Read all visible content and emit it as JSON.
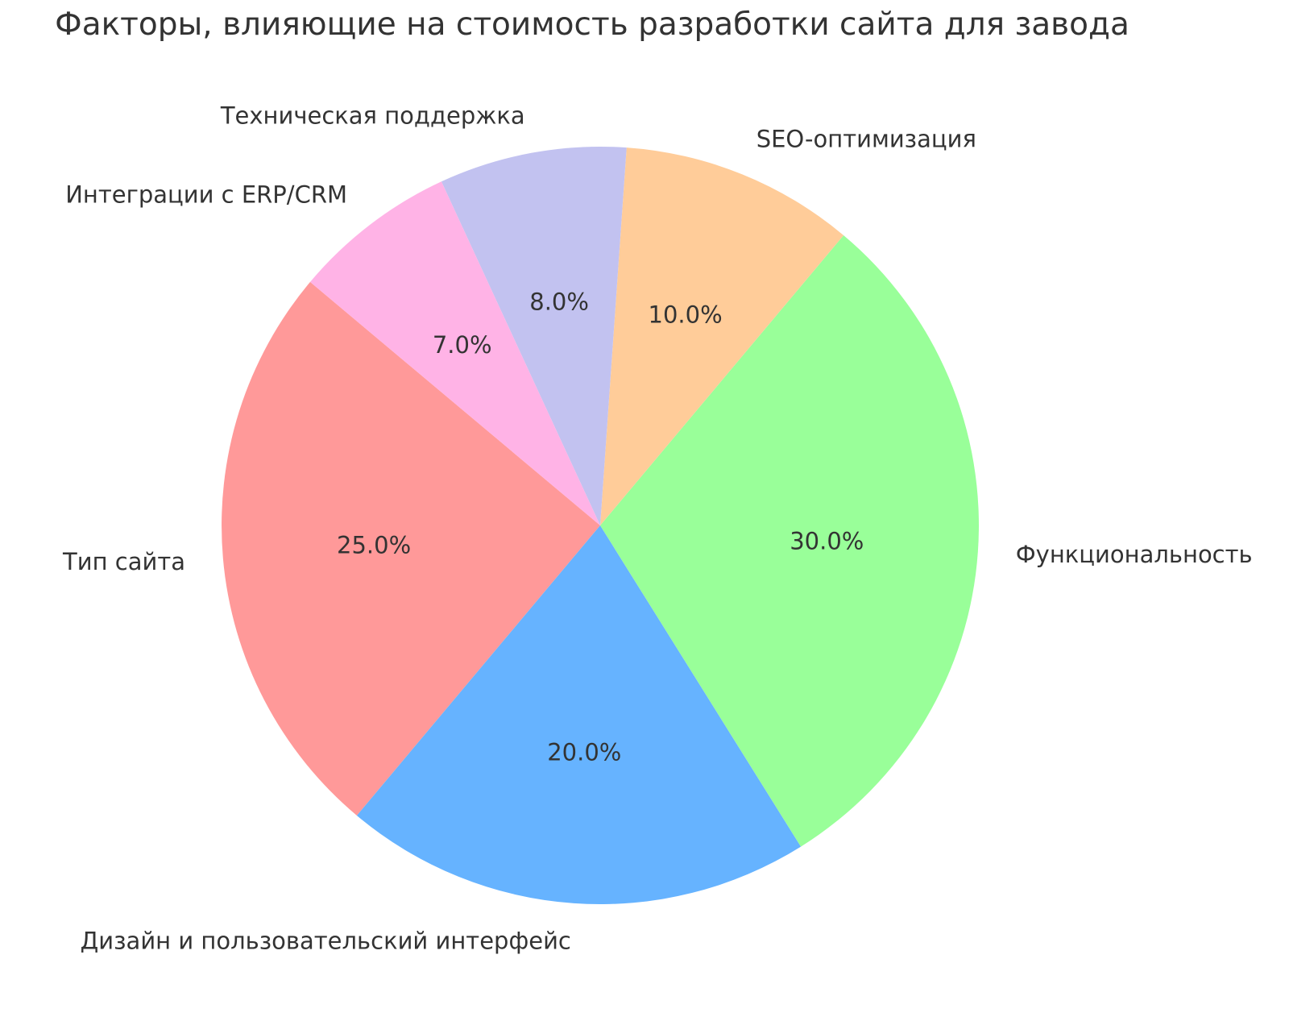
{
  "chart_data": {
    "type": "pie",
    "title": "Факторы, влияющие на стоимость разработки сайта для завода",
    "slices": [
      {
        "label": "Тип сайта",
        "value": 25.0,
        "pct_label": "25.0%",
        "color": "#ff9999"
      },
      {
        "label": "Дизайн и пользовательский интерфейс",
        "value": 20.0,
        "pct_label": "20.0%",
        "color": "#66b3ff"
      },
      {
        "label": "Функциональность",
        "value": 30.0,
        "pct_label": "30.0%",
        "color": "#99ff99"
      },
      {
        "label": "SEO-оптимизация",
        "value": 10.0,
        "pct_label": "10.0%",
        "color": "#ffcc99"
      },
      {
        "label": "Техническая поддержка",
        "value": 8.0,
        "pct_label": "8.0%",
        "color": "#c2c2f0"
      },
      {
        "label": "Интеграции с ERP/CRM",
        "value": 7.0,
        "pct_label": "7.0%",
        "color": "#ffb3e6"
      }
    ],
    "start_angle_deg": 140,
    "direction": "counterclockwise",
    "pct_distance": 0.6,
    "label_distance": 1.1,
    "legend": false,
    "background_color": "#ffffff",
    "text_color": "#333333"
  }
}
